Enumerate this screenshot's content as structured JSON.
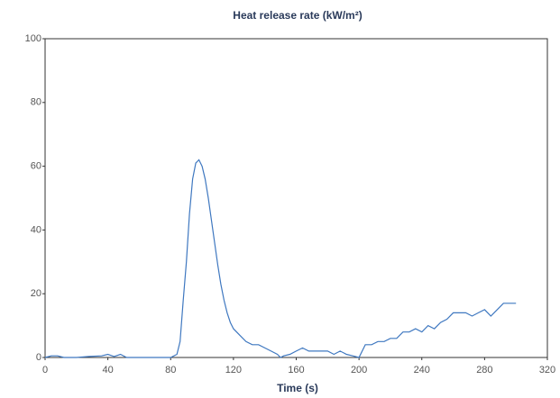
{
  "chart_data": {
    "type": "line",
    "title": "Heat release rate (kW/m²)",
    "x_label": "Time (s)",
    "x": [
      0,
      4,
      8,
      12,
      20,
      28,
      36,
      40,
      44,
      48,
      52,
      60,
      70,
      80,
      84,
      86,
      88,
      90,
      92,
      94,
      96,
      98,
      100,
      102,
      104,
      106,
      108,
      110,
      112,
      114,
      116,
      118,
      120,
      124,
      128,
      132,
      136,
      140,
      144,
      148,
      150,
      152,
      156,
      160,
      164,
      168,
      172,
      176,
      180,
      184,
      188,
      192,
      196,
      200,
      204,
      208,
      212,
      216,
      220,
      224,
      228,
      232,
      236,
      240,
      244,
      248,
      252,
      256,
      260,
      264,
      268,
      272,
      276,
      280,
      284,
      288,
      292,
      296,
      300
    ],
    "series": [
      {
        "color": "#3f78c0",
        "values": [
          0,
          0.5,
          0.5,
          0,
          0,
          0.3,
          0.5,
          1,
          0.3,
          1,
          0,
          0,
          0,
          0,
          1,
          5,
          18,
          30,
          45,
          56,
          61,
          62,
          60,
          56,
          50,
          43,
          36,
          29,
          23,
          18,
          14,
          11,
          9,
          7,
          5,
          4,
          4,
          3,
          2,
          1,
          0,
          0.5,
          1,
          2,
          3,
          2,
          2,
          2,
          2,
          1,
          2,
          1,
          0.5,
          0,
          4,
          4,
          5,
          5,
          6,
          6,
          8,
          8,
          9,
          8,
          10,
          9,
          11,
          12,
          14,
          14,
          14,
          13,
          14,
          15,
          13,
          15,
          17,
          17,
          17
        ]
      }
    ],
    "xlim": [
      0,
      320
    ],
    "xticks": [
      0,
      40,
      80,
      120,
      160,
      200,
      240,
      280,
      320
    ],
    "ylim": [
      0,
      100
    ],
    "yticks": [
      0,
      20,
      40,
      60,
      80,
      100
    ],
    "grid": false
  }
}
